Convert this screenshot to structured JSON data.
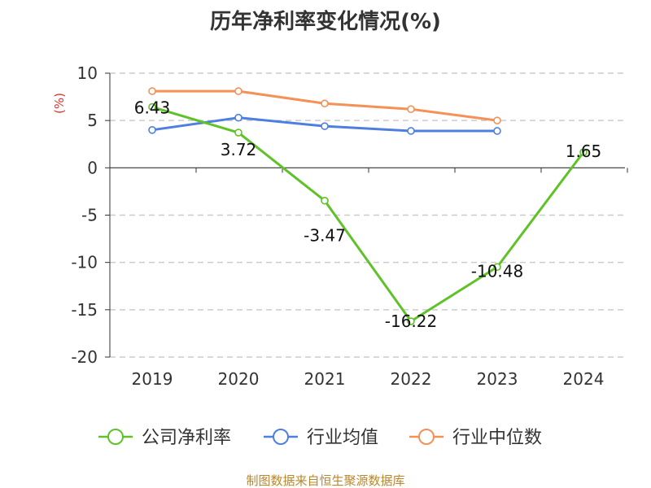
{
  "chart_data": {
    "type": "line",
    "title": "历年净利率变化情况(%)",
    "ylabel": "(%)",
    "categories": [
      "2019",
      "2020",
      "2021",
      "2022",
      "2023",
      "2024"
    ],
    "ylim": [
      -20,
      10
    ],
    "yticks": [
      10,
      5,
      0,
      -5,
      -10,
      -15,
      -20
    ],
    "grid": true,
    "legend_position": "bottom",
    "series": [
      {
        "name": "公司净利率",
        "color": "#5ec228",
        "values": [
          6.43,
          3.72,
          -3.47,
          -16.22,
          -10.48,
          1.65
        ],
        "labels": [
          "6.43",
          "3.72",
          "-3.47",
          "-16.22",
          "-10.48",
          "1.65"
        ]
      },
      {
        "name": "行业均值",
        "color": "#4e7fe0",
        "values": [
          4.0,
          5.3,
          4.4,
          3.9,
          3.9,
          null
        ]
      },
      {
        "name": "行业中位数",
        "color": "#f59056",
        "values": [
          8.1,
          8.1,
          6.8,
          6.2,
          5.0,
          null
        ]
      }
    ]
  },
  "footer": {
    "source": "制图数据来自恒生聚源数据库"
  }
}
